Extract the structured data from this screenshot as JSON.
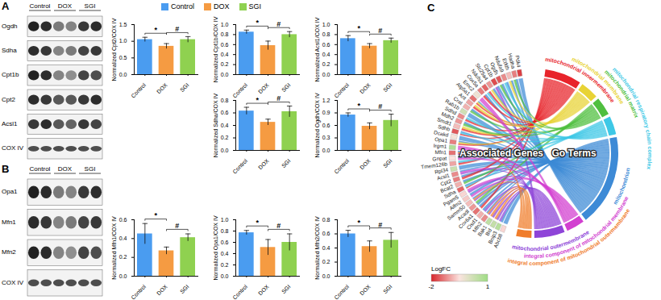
{
  "legend_entries": [
    {
      "name": "Control",
      "color": "#4a9cf0"
    },
    {
      "name": "DOX",
      "color": "#f59b42"
    },
    {
      "name": "SGI",
      "color": "#8fd150"
    }
  ],
  "blots": [
    {
      "panel": "A",
      "groups": [
        "Control",
        "DOX",
        "SGI"
      ],
      "rows": [
        "Ogdh",
        "Sdha",
        "Cpt1b",
        "Cpt2",
        "Acsl1",
        "COX IV"
      ]
    },
    {
      "panel": "B",
      "groups": [
        "Control",
        "DOX",
        "SGI"
      ],
      "rows": [
        "Opa1",
        "Mfn1",
        "Mfn2",
        "COX IV"
      ]
    }
  ],
  "chart_data": [
    {
      "type": "bar",
      "y_label": "Normalized Cpt2/COX IV",
      "categories": [
        "Control",
        "DOX",
        "SGI"
      ],
      "values": [
        1.05,
        0.85,
        1.05
      ],
      "errors": [
        0.07,
        0.08,
        0.09
      ],
      "colors": [
        "#4a9cf0",
        "#f59b42",
        "#8fd150"
      ],
      "ylim": [
        0,
        1.5
      ],
      "yticks": [
        {
          "value": 0,
          "label": "0.0"
        },
        0.5,
        {
          "value": 1,
          "label": "1.0"
        },
        1.5
      ],
      "significance": [
        {
          "from": "Control",
          "to": "DOX",
          "label": "*"
        },
        {
          "from": "DOX",
          "to": "SGI",
          "label": "#"
        }
      ]
    },
    {
      "type": "bar",
      "y_label": "Normalized Cpt1b/COX IV",
      "categories": [
        "Control",
        "DOX",
        "SGI"
      ],
      "values": [
        0.85,
        0.58,
        0.8
      ],
      "errors": [
        0.04,
        0.09,
        0.06
      ],
      "colors": [
        "#4a9cf0",
        "#f59b42",
        "#8fd150"
      ],
      "ylim": [
        0,
        1.0
      ],
      "yticks": [
        {
          "value": 0,
          "label": "0.0"
        },
        0.2,
        0.4,
        0.6,
        0.8,
        {
          "value": 1,
          "label": "1.0"
        }
      ],
      "significance": [
        {
          "from": "Control",
          "to": "DOX",
          "label": "*"
        },
        {
          "from": "DOX",
          "to": "SGI",
          "label": "#"
        }
      ]
    },
    {
      "type": "bar",
      "y_label": "Normalized Acsl1/COX IV",
      "categories": [
        "Control",
        "DOX",
        "SGI"
      ],
      "values": [
        0.72,
        0.57,
        0.68
      ],
      "errors": [
        0.06,
        0.05,
        0.05
      ],
      "colors": [
        "#4a9cf0",
        "#f59b42",
        "#8fd150"
      ],
      "ylim": [
        0,
        1.0
      ],
      "yticks": [
        {
          "value": 0,
          "label": "0.0"
        },
        0.2,
        0.4,
        0.6,
        0.8,
        {
          "value": 1,
          "label": "1.0"
        }
      ],
      "significance": [
        {
          "from": "Control",
          "to": "DOX",
          "label": "*"
        },
        {
          "from": "DOX",
          "to": "SGI",
          "label": "#"
        }
      ]
    },
    {
      "type": "bar",
      "y_label": "Normalized Sdha/COX IV",
      "categories": [
        "Control",
        "DOX",
        "SGI"
      ],
      "values": [
        0.63,
        0.45,
        0.62
      ],
      "errors": [
        0.06,
        0.05,
        0.09
      ],
      "colors": [
        "#4a9cf0",
        "#f59b42",
        "#8fd150"
      ],
      "ylim": [
        0,
        0.8
      ],
      "yticks": [
        {
          "value": 0,
          "label": "0.0"
        },
        0.2,
        0.4,
        0.6,
        0.8
      ],
      "significance": [
        {
          "from": "Control",
          "to": "DOX",
          "label": "*"
        },
        {
          "from": "DOX",
          "to": "SGI",
          "label": "#"
        }
      ]
    },
    {
      "type": "bar",
      "y_label": "Normalized Ogdh/COX IV",
      "categories": [
        "Control",
        "DOX",
        "SGI"
      ],
      "values": [
        0.85,
        0.58,
        0.72
      ],
      "errors": [
        0.05,
        0.08,
        0.15
      ],
      "colors": [
        "#4a9cf0",
        "#f59b42",
        "#8fd150"
      ],
      "ylim": [
        0,
        1.2
      ],
      "yticks": [
        {
          "value": 0,
          "label": "0.0"
        },
        0.3,
        0.6,
        0.9,
        1.2
      ],
      "significance": [
        {
          "from": "Control",
          "to": "DOX",
          "label": "*"
        },
        {
          "from": "DOX",
          "to": "SGI",
          "label": "#"
        }
      ]
    },
    {
      "type": "bar",
      "y_label": "Normalized Mfn1/COX IV",
      "categories": [
        "Control",
        "DOX",
        "SGI"
      ],
      "values": [
        0.45,
        0.27,
        0.41
      ],
      "errors": [
        0.11,
        0.04,
        0.04
      ],
      "colors": [
        "#4a9cf0",
        "#f59b42",
        "#8fd150"
      ],
      "ylim": [
        0,
        0.6
      ],
      "yticks": [
        {
          "value": 0,
          "label": "0.0"
        },
        0.2,
        0.4,
        0.6
      ],
      "significance": [
        {
          "from": "Control",
          "to": "DOX",
          "label": "*"
        },
        {
          "from": "DOX",
          "to": "SGI",
          "label": "#"
        }
      ]
    },
    {
      "type": "bar",
      "y_label": "Normalized Opa1/COX IV",
      "categories": [
        "Control",
        "DOX",
        "SGI"
      ],
      "values": [
        0.77,
        0.51,
        0.6
      ],
      "errors": [
        0.04,
        0.14,
        0.15
      ],
      "colors": [
        "#4a9cf0",
        "#f59b42",
        "#8fd150"
      ],
      "ylim": [
        0,
        1.0
      ],
      "yticks": [
        {
          "value": 0,
          "label": "0.0"
        },
        0.2,
        0.4,
        0.6,
        0.8,
        {
          "value": 1,
          "label": "1.0"
        }
      ],
      "significance": [
        {
          "from": "Control",
          "to": "DOX",
          "label": "*"
        },
        {
          "from": "DOX",
          "to": "SGI",
          "label": "#"
        }
      ]
    },
    {
      "type": "bar",
      "y_label": "Normalized Mfn2/COX IV",
      "categories": [
        "Control",
        "DOX",
        "SGI"
      ],
      "values": [
        0.6,
        0.42,
        0.51
      ],
      "errors": [
        0.05,
        0.08,
        0.11
      ],
      "colors": [
        "#4a9cf0",
        "#f59b42",
        "#8fd150"
      ],
      "ylim": [
        0,
        0.8
      ],
      "yticks": [
        {
          "value": 0,
          "label": "0.0"
        },
        0.2,
        0.4,
        0.6,
        0.8
      ],
      "significance": [
        {
          "from": "Control",
          "to": "DOX",
          "label": "*"
        },
        {
          "from": "DOX",
          "to": "SGI",
          "label": "#"
        }
      ]
    }
  ],
  "chord": {
    "panel": "C",
    "gene_side_label": "Associated Genes",
    "term_side_label": "Go Terms",
    "terms": [
      {
        "name": "mitochondrial innermembrane",
        "color": "#e8242b"
      },
      {
        "name": "mitochondrial membrane",
        "color": "#e8d335"
      },
      {
        "name": "mitochondrial matrix",
        "color": "#4fbf3f"
      },
      {
        "name": "mitochondrial respiratory chain complex",
        "color": "#3ec8e6"
      },
      {
        "name": "mitochondrion",
        "color": "#3d8ad6"
      },
      {
        "name": "integral component of mitochondrial membrane",
        "color": "#d23fd0"
      },
      {
        "name": "mitochondrial outermembrane",
        "color": "#8e44d8"
      },
      {
        "name": "integral component of mitochondrial outermembrane",
        "color": "#f07d2b"
      }
    ],
    "genes": [
      {
        "name": "Abcb8",
        "logfc": -0.6,
        "terms": [
          "mitochondrion"
        ]
      },
      {
        "name": "Bnip3",
        "logfc": 0.6,
        "terms": [
          "mitochondrion",
          "mitochondrial outermembrane"
        ]
      },
      {
        "name": "Bid",
        "logfc": 0.4,
        "terms": [
          "mitochondrial outermembrane",
          "integral component of mitochondrial outermembrane"
        ]
      },
      {
        "name": "Bak1",
        "logfc": 0.5,
        "terms": [
          "mitochondrial outermembrane",
          "integral component of mitochondrial outermembrane"
        ]
      },
      {
        "name": "Mfn2",
        "logfc": -1.2,
        "terms": [
          "mitochondrial outermembrane",
          "integral component of mitochondrial outermembrane",
          "mitochondrion"
        ]
      },
      {
        "name": "Cisd1",
        "logfc": -0.9,
        "terms": [
          "mitochondrial outermembrane",
          "mitochondrion"
        ]
      },
      {
        "name": "Cox6a1",
        "logfc": -1.4,
        "terms": [
          "mitochondrial innermembrane",
          "mitochondrion"
        ]
      },
      {
        "name": "Acadl",
        "logfc": -1.1,
        "terms": [
          "mitochondrion",
          "mitochondrial matrix"
        ]
      },
      {
        "name": "Samm50",
        "logfc": -0.8,
        "terms": [
          "mitochondrial outermembrane",
          "integral component of mitochondrial outermembrane",
          "mitochondrion"
        ]
      },
      {
        "name": "Aifm2",
        "logfc": -0.7,
        "terms": [
          "integral component of mitochondrial membrane",
          "mitochondrion"
        ]
      },
      {
        "name": "Pgam5",
        "logfc": -0.6,
        "terms": [
          "mitochondrial outermembrane",
          "integral component of mitochondrial membrane"
        ]
      },
      {
        "name": "Sdha",
        "logfc": -1.5,
        "terms": [
          "mitochondrial innermembrane",
          "mitochondrial respiratory chain complex",
          "mitochondrion"
        ]
      },
      {
        "name": "Bcat2",
        "logfc": -0.9,
        "terms": [
          "mitochondrial matrix",
          "mitochondrion"
        ]
      },
      {
        "name": "Cpt2",
        "logfc": -1.3,
        "terms": [
          "mitochondrial innermembrane",
          "mitochondrion"
        ]
      },
      {
        "name": "Acsl1",
        "logfc": -1.2,
        "terms": [
          "mitochondrial outermembrane",
          "integral component of mitochondrial membrane",
          "mitochondrion"
        ]
      },
      {
        "name": "Rpl34",
        "logfc": 0.3,
        "terms": [
          "mitochondrion"
        ]
      },
      {
        "name": "Tmem126b",
        "logfc": -1.0,
        "terms": [
          "mitochondrial innermembrane",
          "mitochondrial respiratory chain complex"
        ]
      },
      {
        "name": "Gnpat",
        "logfc": -0.5,
        "terms": [
          "integral component of mitochondrial membrane",
          "mitochondrion"
        ]
      },
      {
        "name": "Mfn1",
        "logfc": -1.4,
        "terms": [
          "mitochondrial outermembrane",
          "integral component of mitochondrial outermembrane",
          "mitochondrion"
        ]
      },
      {
        "name": "Irgm1",
        "logfc": 0.7,
        "terms": [
          "integral component of mitochondrial membrane"
        ]
      },
      {
        "name": "Opa1",
        "logfc": -1.3,
        "terms": [
          "mitochondrial innermembrane",
          "mitochondrial membrane",
          "mitochondrion"
        ]
      },
      {
        "name": "Dcakd",
        "logfc": -0.4,
        "terms": [
          "mitochondrion"
        ]
      },
      {
        "name": "Sdhb",
        "logfc": -1.6,
        "terms": [
          "mitochondrial innermembrane",
          "mitochondrial respiratory chain complex",
          "mitochondrion"
        ]
      },
      {
        "name": "Smdt1",
        "logfc": -0.8,
        "terms": [
          "mitochondrial innermembrane",
          "mitochondrial membrane"
        ]
      },
      {
        "name": "Mdh2",
        "logfc": -1.1,
        "terms": [
          "mitochondrial matrix",
          "mitochondrion"
        ]
      },
      {
        "name": "Sdhd",
        "logfc": -1.2,
        "terms": [
          "mitochondrial innermembrane",
          "mitochondrial respiratory chain complex"
        ]
      },
      {
        "name": "Rab1b",
        "logfc": 0.2,
        "terms": [
          "mitochondrion"
        ]
      },
      {
        "name": "Crat",
        "logfc": -0.9,
        "terms": [
          "mitochondrial matrix",
          "mitochondrion"
        ]
      },
      {
        "name": "Ant",
        "logfc": -1.0,
        "terms": [
          "mitochondrial innermembrane",
          "mitochondrial membrane"
        ]
      },
      {
        "name": "Atp5a1",
        "logfc": -1.4,
        "terms": [
          "mitochondrial innermembrane",
          "mitochondrial membrane",
          "mitochondrion"
        ]
      },
      {
        "name": "Emc2",
        "logfc": -0.3,
        "terms": [
          "integral component of mitochondrial membrane"
        ]
      },
      {
        "name": "Cox5a",
        "logfc": -1.3,
        "terms": [
          "mitochondrial innermembrane",
          "mitochondrion"
        ]
      },
      {
        "name": "Ndufs1",
        "logfc": -1.5,
        "terms": [
          "mitochondrial respiratory chain complex",
          "mitochondrial innermembrane"
        ]
      },
      {
        "name": "Slc25a4",
        "logfc": -1.1,
        "terms": [
          "mitochondrial membrane",
          "mitochondrion"
        ]
      },
      {
        "name": "Cpt1b",
        "logfc": -1.7,
        "terms": [
          "mitochondrial outermembrane",
          "mitochondrion"
        ]
      },
      {
        "name": "Ogdh",
        "logfc": -1.6,
        "terms": [
          "mitochondrial matrix",
          "mitochondrion"
        ]
      },
      {
        "name": "Ndufa9",
        "logfc": -1.2,
        "terms": [
          "mitochondrial respiratory chain complex",
          "mitochondrion"
        ]
      },
      {
        "name": "Etfdh",
        "logfc": -0.8,
        "terms": [
          "mitochondrial membrane",
          "mitochondrion"
        ]
      },
      {
        "name": "Hadha",
        "logfc": -1.3,
        "terms": [
          "mitochondrial matrix",
          "mitochondrion"
        ]
      },
      {
        "name": "Pdk4",
        "logfc": -1.8,
        "terms": [
          "mitochondrion"
        ]
      }
    ],
    "colorbar": {
      "label": "LogFC",
      "range": [
        -2,
        1
      ],
      "ticks": [
        -2,
        1
      ],
      "colors": [
        "#d7262b",
        "#fbe3df",
        "#9fdd85"
      ]
    }
  }
}
